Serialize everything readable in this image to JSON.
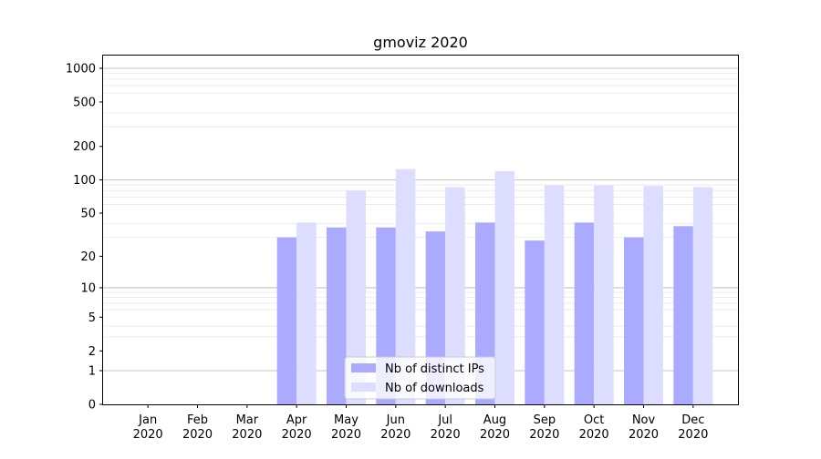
{
  "chart_data": {
    "type": "bar",
    "title": "gmoviz 2020",
    "xlabel": "",
    "ylabel": "",
    "yscale": "log1p",
    "ylim": [
      0,
      1300
    ],
    "yticks": [
      0,
      1,
      2,
      5,
      10,
      20,
      50,
      100,
      200,
      500,
      1000
    ],
    "ytick_labels": [
      "0",
      "1",
      "2",
      "5",
      "10",
      "20",
      "50",
      "100",
      "200",
      "500",
      "1000"
    ],
    "grid": "horizontal",
    "legend_position": "bottom-center",
    "categories": [
      [
        "Jan",
        "2020"
      ],
      [
        "Feb",
        "2020"
      ],
      [
        "Mar",
        "2020"
      ],
      [
        "Apr",
        "2020"
      ],
      [
        "May",
        "2020"
      ],
      [
        "Jun",
        "2020"
      ],
      [
        "Jul",
        "2020"
      ],
      [
        "Aug",
        "2020"
      ],
      [
        "Sep",
        "2020"
      ],
      [
        "Oct",
        "2020"
      ],
      [
        "Nov",
        "2020"
      ],
      [
        "Dec",
        "2020"
      ]
    ],
    "series": [
      {
        "name": "Nb of distinct IPs",
        "color": "#aaaaff",
        "values": [
          0,
          0,
          0,
          30,
          37,
          37,
          34,
          41,
          28,
          41,
          30,
          38
        ]
      },
      {
        "name": "Nb of downloads",
        "color": "#ddddff",
        "values": [
          0,
          0,
          0,
          41,
          80,
          125,
          86,
          120,
          89,
          89,
          88,
          86
        ]
      }
    ]
  }
}
